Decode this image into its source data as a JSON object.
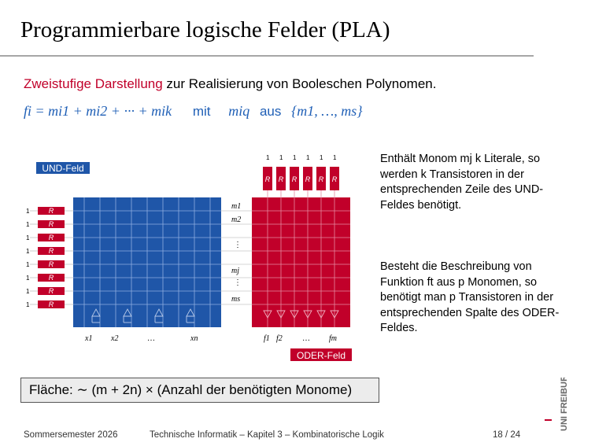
{
  "title": "Programmierbare logische Felder (PLA)",
  "intro": {
    "highlight": "Zweistufige Darstellung",
    "rest": " zur Realisierung von Booleschen Polynomen."
  },
  "formula": {
    "expression": "fi = mi1 + mi2 + ··· + mik",
    "mit": "mit",
    "term": "miq",
    "aus": "aus",
    "set": "{m1, …, ms}"
  },
  "diagram": {
    "und_label": "UND-Feld",
    "oder_label": "ODER-Feld",
    "resistor_label": "R",
    "one_label": "1",
    "row_labels": [
      "m1",
      "m2",
      "⋮",
      "mj",
      "⋮",
      "ms"
    ],
    "x_labels": [
      "x1",
      "x2",
      "…",
      "xn"
    ],
    "f_labels": [
      "f1",
      "f2",
      "…",
      "fm"
    ],
    "colors": {
      "und": "#1f56a8",
      "oder": "#c1002a",
      "grid": "#9fb5dd"
    }
  },
  "side_text": {
    "p1": "Enthält Monom mj k Literale, so werden k Transistoren in der entsprechenden Zeile des UND-Feldes benötigt.",
    "p2": "Besteht die Beschreibung von Funktion ft aus p Monomen, so benötigt man p Transistoren in der entsprechenden Spalte des ODER-Feldes."
  },
  "area": "Fläche: ∼ (m + 2n) × (Anzahl der benötigten Monome)",
  "footer": {
    "semester": "Sommersemester 2026",
    "course": "Technische Informatik – Kapitel 3 – Kombinatorische Logik",
    "page": "18 / 24"
  },
  "logo": {
    "text": "UNI FREIBURG"
  }
}
